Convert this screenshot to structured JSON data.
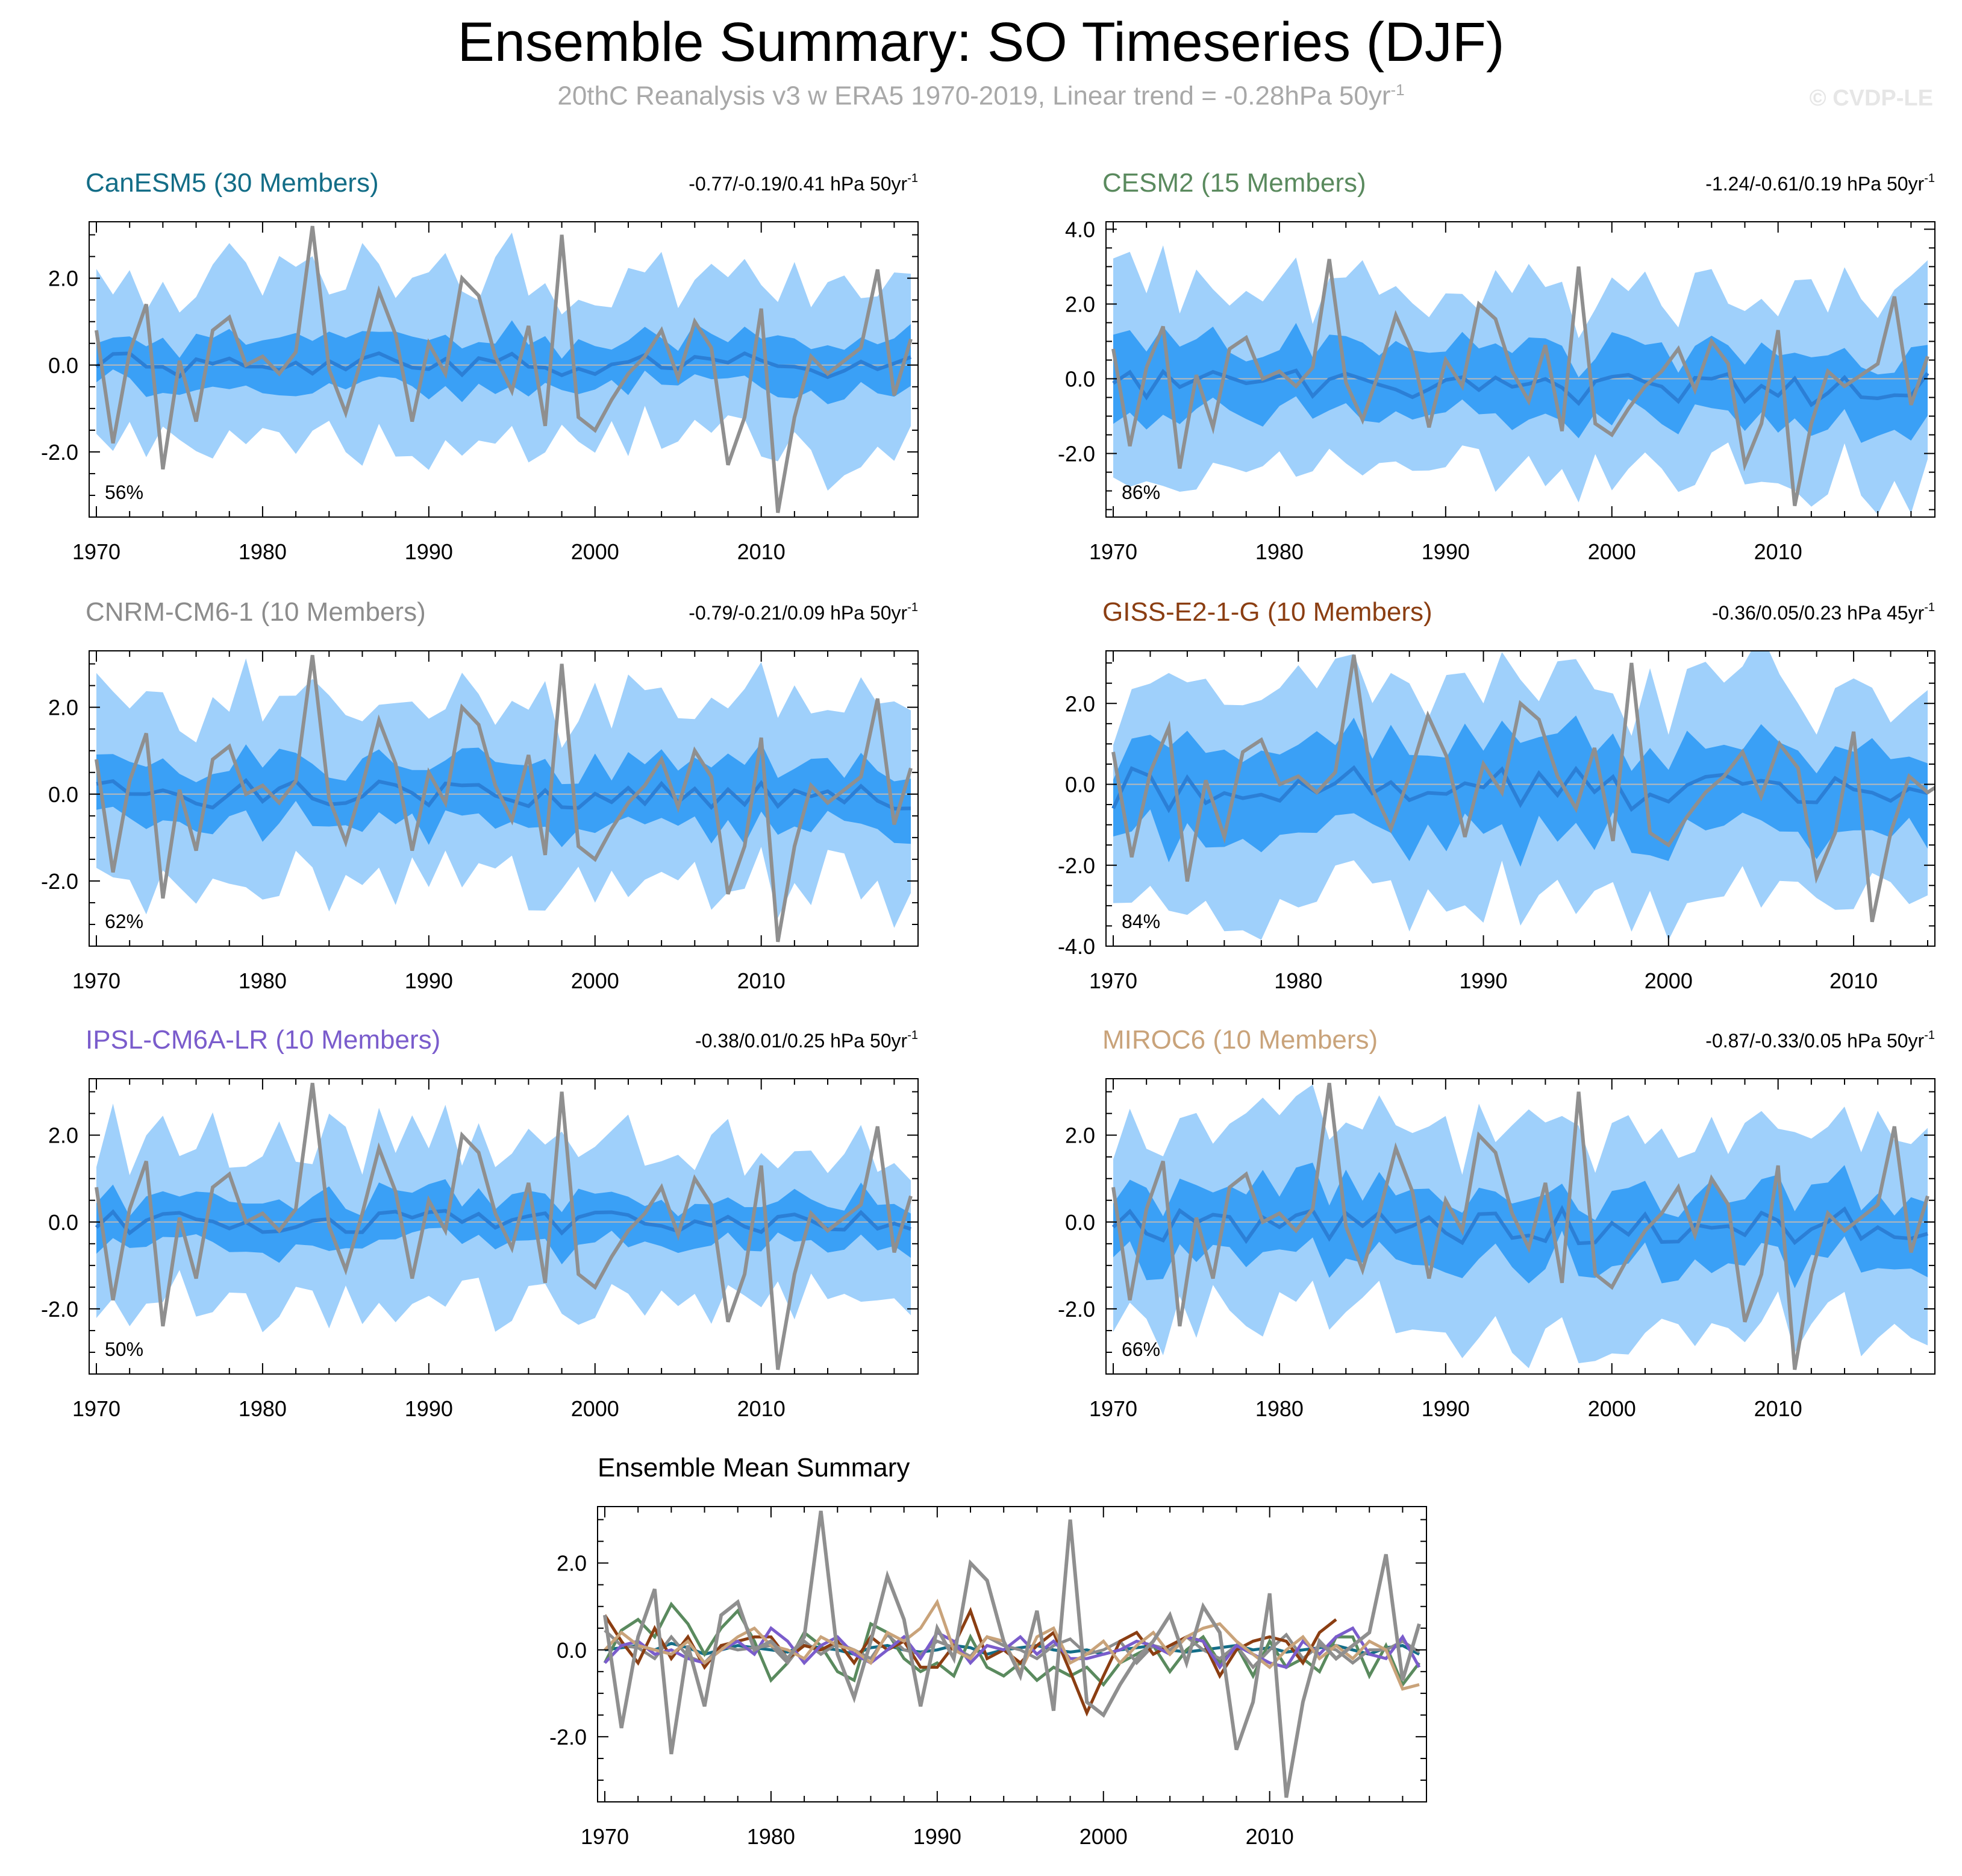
{
  "figure": {
    "title": "Ensemble Summary: SO Timeseries (DJF)",
    "subtitle_text": "20thC Reanalysis v3 w ERA5 1970-2019, Linear trend = -0.28hPa 50yr",
    "subtitle_sup": "-1",
    "watermark": "© CVDP-LE",
    "colors": {
      "band_outer": "#9fd0fb",
      "band_inner": "#3aa0f6",
      "model_mean_line": "#2b7fd6",
      "observed_line": "#8f8f8f",
      "zero_line": "#b8b8b8"
    }
  },
  "chart_data": [
    {
      "type": "area",
      "name": "CanESM5",
      "title": "CanESM5 (30 Members)",
      "title_color": "#136d87",
      "trend_label": "-0.77/-0.19/0.41 hPa 50yr",
      "trend_sup": "-1",
      "percent_label": "56%",
      "xlim": [
        1970,
        2019
      ],
      "ylim": [
        -3.5,
        3.3
      ],
      "yticks": [
        2.0,
        0.0,
        -2.0
      ],
      "ytick_labels": [
        "2.0",
        "0.0",
        "-2.0"
      ],
      "xticks": [
        1970,
        1980,
        1990,
        2000,
        2010
      ],
      "xtick_labels": [
        "1970",
        "1980",
        "1990",
        "2000",
        "2010"
      ],
      "x_start": 1970,
      "x_end": 2019,
      "envelope": {
        "amp": 0.62,
        "outer": 1.7,
        "center": 0.0,
        "phase": 1
      },
      "series": [
        {
          "name": "Observed",
          "color": "#8f8f8f"
        }
      ]
    },
    {
      "type": "area",
      "name": "CESM2",
      "title": "CESM2 (15 Members)",
      "title_color": "#5a8a5e",
      "trend_label": "-1.24/-0.61/0.19 hPa 50yr",
      "trend_sup": "-1",
      "percent_label": "86%",
      "xlim": [
        1970,
        2019
      ],
      "ylim": [
        -3.7,
        4.2
      ],
      "yticks": [
        4.0,
        2.0,
        0.0,
        -2.0
      ],
      "ytick_labels": [
        "4.0",
        "2.0",
        "0.0",
        "-2.0"
      ],
      "xticks": [
        1970,
        1980,
        1990,
        2000,
        2010
      ],
      "xtick_labels": [
        "1970",
        "1980",
        "1990",
        "2000",
        "2010"
      ],
      "x_start": 1970,
      "x_end": 2019,
      "envelope": {
        "amp": 1.05,
        "outer": 1.9,
        "center": -0.25,
        "phase": 2
      },
      "series": [
        {
          "name": "Observed",
          "color": "#8f8f8f"
        }
      ]
    },
    {
      "type": "area",
      "name": "CNRM-CM6-1",
      "title": "CNRM-CM6-1 (10 Members)",
      "title_color": "#8c8c8c",
      "trend_label": "-0.79/-0.21/0.09 hPa 50yr",
      "trend_sup": "-1",
      "percent_label": "62%",
      "xlim": [
        1970,
        2019
      ],
      "ylim": [
        -3.5,
        3.3
      ],
      "yticks": [
        2.0,
        0.0,
        -2.0
      ],
      "ytick_labels": [
        "2.0",
        "0.0",
        "-2.0"
      ],
      "xticks": [
        1970,
        1980,
        1990,
        2000,
        2010
      ],
      "xtick_labels": [
        "1970",
        "1980",
        "1990",
        "2000",
        "2010"
      ],
      "x_start": 1970,
      "x_end": 2019,
      "envelope": {
        "amp": 0.75,
        "outer": 1.65,
        "center": 0.0,
        "phase": 3
      },
      "series": [
        {
          "name": "Observed",
          "color": "#8f8f8f"
        }
      ]
    },
    {
      "type": "area",
      "name": "GISS-E2-1-G",
      "title": "GISS-E2-1-G (10 Members)",
      "title_color": "#8b3e12",
      "trend_label": "-0.36/0.05/0.23 hPa 45yr",
      "trend_sup": "-1",
      "percent_label": "84%",
      "xlim": [
        1970,
        2014
      ],
      "ylim": [
        -4.0,
        3.3
      ],
      "yticks": [
        2.0,
        0.0,
        -2.0,
        -4.0
      ],
      "ytick_labels": [
        "2.0",
        "0.0",
        "-2.0",
        "-4.0"
      ],
      "xticks": [
        1970,
        1980,
        1990,
        2000,
        2010
      ],
      "xtick_labels": [
        "1970",
        "1980",
        "1990",
        "2000",
        "2010"
      ],
      "x_start": 1970,
      "x_end": 2014,
      "envelope": {
        "amp": 1.25,
        "outer": 1.9,
        "center": -0.1,
        "phase": 4
      },
      "series": [
        {
          "name": "Observed",
          "color": "#8f8f8f"
        }
      ]
    },
    {
      "type": "area",
      "name": "IPSL-CM6A-LR",
      "title": "IPSL-CM6A-LR (10 Members)",
      "title_color": "#7a5ccc",
      "trend_label": "-0.38/0.01/0.25 hPa 50yr",
      "trend_sup": "-1",
      "percent_label": "50%",
      "xlim": [
        1970,
        2019
      ],
      "ylim": [
        -3.5,
        3.3
      ],
      "yticks": [
        2.0,
        0.0,
        -2.0
      ],
      "ytick_labels": [
        "2.0",
        "0.0",
        "-2.0"
      ],
      "xticks": [
        1970,
        1980,
        1990,
        2000,
        2010
      ],
      "xtick_labels": [
        "1970",
        "1980",
        "1990",
        "2000",
        "2010"
      ],
      "x_start": 1970,
      "x_end": 2019,
      "envelope": {
        "amp": 0.6,
        "outer": 1.6,
        "center": 0.0,
        "phase": 5
      },
      "series": [
        {
          "name": "Observed",
          "color": "#8f8f8f"
        }
      ]
    },
    {
      "type": "area",
      "name": "MIROC6",
      "title": "MIROC6 (10 Members)",
      "title_color": "#c9a37a",
      "trend_label": "-0.87/-0.33/0.05 hPa 50yr",
      "trend_sup": "-1",
      "percent_label": "66%",
      "xlim": [
        1970,
        2019
      ],
      "ylim": [
        -3.5,
        3.3
      ],
      "yticks": [
        2.0,
        0.0,
        -2.0
      ],
      "ytick_labels": [
        "2.0",
        "0.0",
        "-2.0"
      ],
      "xticks": [
        1970,
        1980,
        1990,
        2000,
        2010
      ],
      "xtick_labels": [
        "1970",
        "1980",
        "1990",
        "2000",
        "2010"
      ],
      "x_start": 1970,
      "x_end": 2019,
      "envelope": {
        "amp": 0.9,
        "outer": 1.75,
        "center": -0.1,
        "phase": 6
      },
      "series": [
        {
          "name": "Observed",
          "color": "#8f8f8f"
        }
      ]
    },
    {
      "type": "line",
      "name": "Ensemble Mean Summary",
      "title": "Ensemble Mean Summary",
      "title_color": "#000000",
      "trend_label": "",
      "trend_sup": "",
      "percent_label": "",
      "xlim": [
        1970,
        2019
      ],
      "ylim": [
        -3.5,
        3.3
      ],
      "yticks": [
        2.0,
        0.0,
        -2.0
      ],
      "ytick_labels": [
        "2.0",
        "0.0",
        "-2.0"
      ],
      "xticks": [
        1970,
        1980,
        1990,
        2000,
        2010
      ],
      "xtick_labels": [
        "1970",
        "1980",
        "1990",
        "2000",
        "2010"
      ],
      "x_start": 1970,
      "x_end": 2019,
      "series": [
        {
          "name": "Observed",
          "color": "#8f8f8f"
        },
        {
          "name": "CanESM5",
          "color": "#136d87",
          "ensemble_mean": [
            0.0,
            0.05,
            0.1,
            0.0,
            0.15,
            0.05,
            -0.1,
            0.0,
            0.1,
            0.05,
            0.0,
            -0.05,
            0.1,
            0.05,
            0.0,
            -0.1,
            0.05,
            0.1,
            0.0,
            -0.05,
            0.0,
            0.1,
            0.05,
            -0.1,
            0.0,
            0.05,
            0.1,
            0.0,
            -0.05,
            0.0,
            -0.1,
            0.0,
            0.05,
            0.1,
            0.0,
            -0.05,
            0.0,
            0.05,
            0.1,
            0.0,
            0.05,
            -0.05,
            0.0,
            0.05,
            0.1,
            0.0,
            -0.1,
            0.05,
            0.1,
            -0.1
          ]
        },
        {
          "name": "CESM2",
          "color": "#5a8a5e",
          "ensemble_mean": [
            -0.3,
            0.45,
            0.7,
            0.3,
            1.05,
            0.6,
            -0.1,
            0.5,
            0.9,
            0.2,
            -0.7,
            -0.3,
            0.4,
            0.1,
            -0.5,
            -0.7,
            0.6,
            0.4,
            -0.2,
            -0.5,
            -0.3,
            -0.6,
            0.3,
            -0.4,
            -0.6,
            -0.3,
            -0.7,
            -0.4,
            -0.6,
            -0.4,
            -0.8,
            -0.3,
            -0.1,
            0.1,
            -0.5,
            0.0,
            0.3,
            -0.3,
            0.1,
            -0.6,
            0.2,
            -0.4,
            -0.2,
            -0.5,
            0.3,
            0.3,
            -0.6,
            0.1,
            -0.8,
            -0.3
          ]
        },
        {
          "name": "CNRM-CM6-1",
          "color": "#8c8c8c",
          "ensemble_mean": [
            0.45,
            0.1,
            0.05,
            -0.2,
            0.3,
            -0.15,
            -0.3,
            0.1,
            0.0,
            0.05,
            0.1,
            -0.3,
            0.2,
            -0.1,
            0.15,
            0.0,
            -0.2,
            0.35,
            0.0,
            -0.1,
            0.2,
            0.05,
            -0.15,
            0.3,
            0.1,
            0.0,
            -0.2,
            0.1,
            0.25,
            -0.1,
            0.0,
            0.2,
            -0.3,
            0.1,
            0.0,
            0.3,
            0.0,
            -0.2,
            0.1,
            -0.4,
            0.0,
            0.35,
            -0.2,
            0.1,
            0.0,
            -0.3,
            0.0,
            0.0,
            0.2,
            -0.05
          ]
        },
        {
          "name": "GISS-E2-1-G",
          "color": "#8b3e12",
          "ensemble_mean": [
            0.8,
            0.2,
            -0.3,
            0.5,
            -0.2,
            0.3,
            -0.4,
            0.1,
            0.2,
            0.3,
            0.3,
            -0.2,
            0.1,
            0.0,
            0.2,
            -0.3,
            0.3,
            0.0,
            0.2,
            -0.4,
            -0.4,
            0.1,
            0.9,
            -0.2,
            0.0,
            -0.3,
            0.1,
            0.4,
            -0.5,
            -1.45,
            -0.6,
            0.2,
            0.4,
            -0.1,
            0.1,
            0.3,
            0.2,
            -0.6,
            0.0,
            0.2,
            0.3,
            0.2,
            -0.3,
            0.4,
            0.7
          ]
        },
        {
          "name": "IPSL-CM6A-LR",
          "color": "#7a5ccc",
          "ensemble_mean": [
            -0.3,
            0.1,
            0.2,
            -0.1,
            0.0,
            -0.2,
            -0.3,
            0.0,
            0.2,
            -0.1,
            0.5,
            0.2,
            -0.3,
            0.1,
            0.3,
            -0.1,
            -0.3,
            0.0,
            0.3,
            -0.2,
            0.4,
            0.2,
            -0.3,
            0.1,
            0.0,
            0.3,
            -0.1,
            0.2,
            -0.2,
            -0.2,
            -0.1,
            0.0,
            0.2,
            0.1,
            -0.1,
            0.3,
            0.2,
            -0.4,
            0.1,
            -0.1,
            -0.3,
            -0.4,
            0.2,
            -0.1,
            0.3,
            0.5,
            -0.1,
            -0.2,
            0.3,
            -0.4
          ]
        },
        {
          "name": "MIROC6",
          "color": "#c9a37a",
          "ensemble_mean": [
            0.0,
            0.4,
            0.1,
            0.0,
            -0.1,
            0.2,
            -0.3,
            0.0,
            0.3,
            0.5,
            0.1,
            0.0,
            -0.2,
            0.3,
            0.1,
            0.0,
            -0.3,
            0.4,
            0.2,
            0.5,
            1.1,
            0.0,
            -0.2,
            0.3,
            0.2,
            -0.5,
            0.3,
            0.5,
            -0.3,
            -0.1,
            0.2,
            -0.3,
            0.1,
            0.4,
            -0.1,
            0.3,
            0.5,
            0.6,
            0.2,
            -0.1,
            -0.4,
            0.0,
            0.3,
            -0.2,
            0.1,
            -0.2,
            0.2,
            0.0,
            -0.9,
            -0.8
          ]
        }
      ]
    }
  ],
  "observed_series": {
    "name": "20thC Reanalysis v3 w ERA5",
    "years": [
      1970,
      2019
    ],
    "values": [
      0.8,
      -1.8,
      0.3,
      1.4,
      -2.4,
      0.1,
      -1.3,
      0.8,
      1.1,
      0.0,
      0.2,
      -0.2,
      0.3,
      3.2,
      -0.1,
      -1.1,
      0.2,
      1.7,
      0.7,
      -1.3,
      0.5,
      -0.2,
      2.0,
      1.6,
      0.2,
      -0.6,
      0.9,
      -1.4,
      3.0,
      -1.2,
      -1.5,
      -0.8,
      -0.2,
      0.2,
      0.8,
      -0.3,
      1.0,
      0.4,
      -2.3,
      -1.2,
      1.3,
      -3.4,
      -1.2,
      0.2,
      -0.2,
      0.1,
      0.4,
      2.2,
      -0.7,
      0.6
    ]
  }
}
